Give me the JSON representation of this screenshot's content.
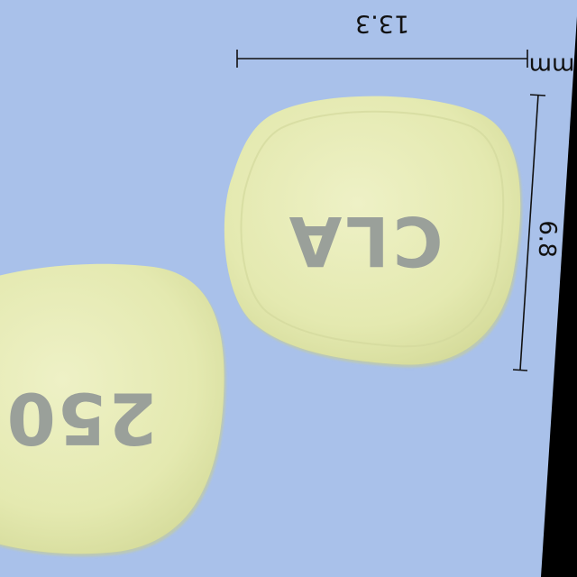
{
  "scale": {
    "unit": "mm",
    "width_label": "13.3",
    "height_label": "6.8"
  },
  "tablets": {
    "front_imprint": "CLA",
    "back_imprint": "250"
  },
  "colors": {
    "background": "#a9c1ea",
    "tablet": "#e6ebb3",
    "imprint": "#9aa09a",
    "ink": "#111111"
  }
}
